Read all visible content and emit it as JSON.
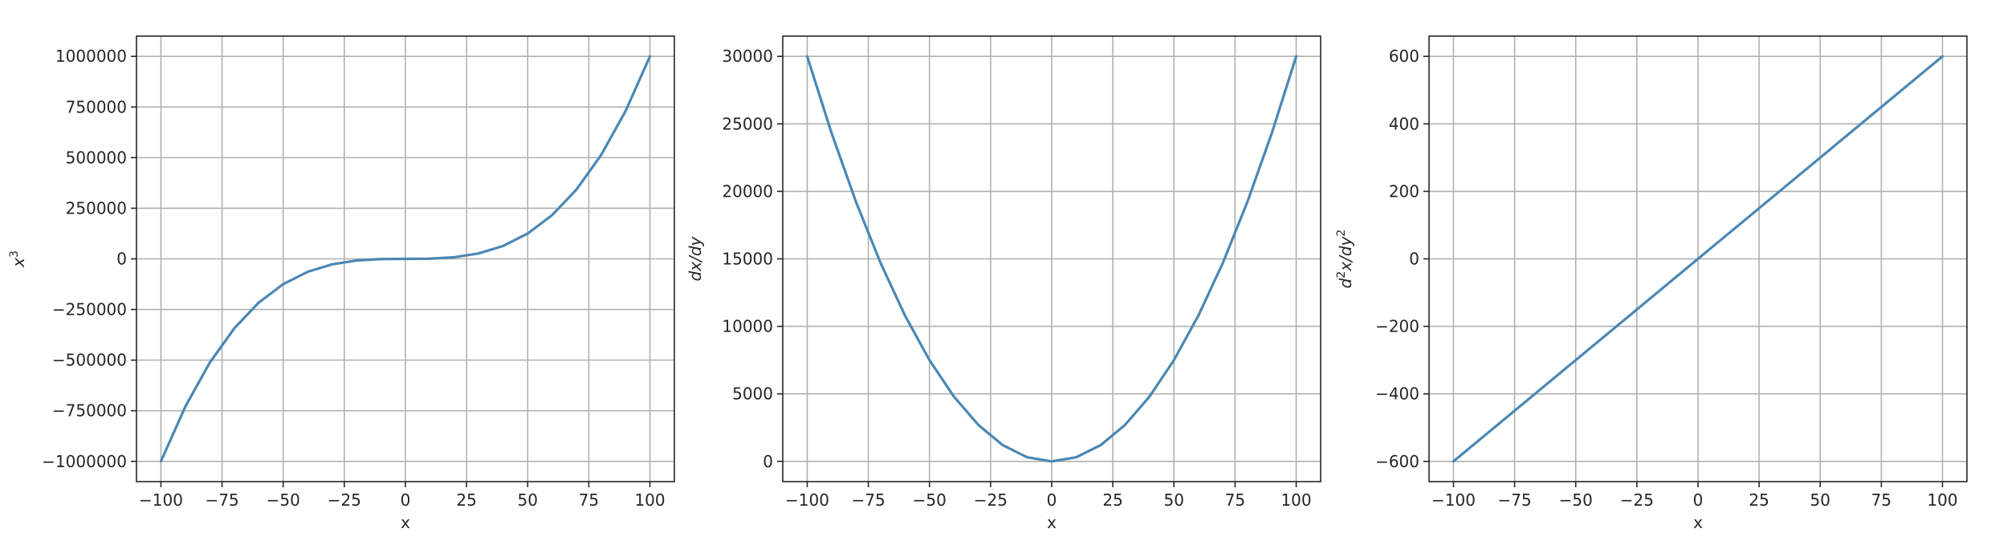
{
  "colors": {
    "series": "#4b87b5",
    "grid": "#b0b0b0",
    "frame": "#262626"
  },
  "chart_data": [
    {
      "type": "line",
      "title": "",
      "xlabel": "x",
      "ylabel_base": "x",
      "ylabel_sup": "3",
      "xlim": [
        -110,
        110
      ],
      "ylim": [
        -1100000,
        1100000
      ],
      "xticks": [
        -100,
        -75,
        -50,
        -25,
        0,
        25,
        50,
        75,
        100
      ],
      "xtick_labels": [
        "−100",
        "−75",
        "−50",
        "−25",
        "0",
        "25",
        "50",
        "75",
        "100"
      ],
      "yticks": [
        -1000000,
        -750000,
        -500000,
        -250000,
        0,
        250000,
        500000,
        750000,
        1000000
      ],
      "ytick_labels": [
        "−1000000",
        "−750000",
        "−500000",
        "−250000",
        "0",
        "250000",
        "500000",
        "750000",
        "1000000"
      ],
      "grid": true,
      "series": [
        {
          "x": [
            -100,
            -90,
            -80,
            -70,
            -60,
            -50,
            -40,
            -30,
            -20,
            -10,
            0,
            10,
            20,
            30,
            40,
            50,
            60,
            70,
            80,
            90,
            100
          ],
          "y": [
            -1000000,
            -729000,
            -512000,
            -343000,
            -216000,
            -125000,
            -64000,
            -27000,
            -8000,
            -1000,
            0,
            1000,
            8000,
            27000,
            64000,
            125000,
            216000,
            343000,
            512000,
            729000,
            1000000
          ]
        }
      ]
    },
    {
      "type": "line",
      "title": "",
      "xlabel": "x",
      "ylabel": "dx/dy",
      "xlim": [
        -110,
        110
      ],
      "ylim": [
        -1500,
        31500
      ],
      "xticks": [
        -100,
        -75,
        -50,
        -25,
        0,
        25,
        50,
        75,
        100
      ],
      "xtick_labels": [
        "−100",
        "−75",
        "−50",
        "−25",
        "0",
        "25",
        "50",
        "75",
        "100"
      ],
      "yticks": [
        0,
        5000,
        10000,
        15000,
        20000,
        25000,
        30000
      ],
      "ytick_labels": [
        "0",
        "5000",
        "10000",
        "15000",
        "20000",
        "25000",
        "30000"
      ],
      "grid": true,
      "series": [
        {
          "x": [
            -100,
            -90,
            -80,
            -70,
            -60,
            -50,
            -40,
            -30,
            -20,
            -10,
            0,
            10,
            20,
            30,
            40,
            50,
            60,
            70,
            80,
            90,
            100
          ],
          "y": [
            30000,
            24300,
            19200,
            14700,
            10800,
            7500,
            4800,
            2700,
            1200,
            300,
            0,
            300,
            1200,
            2700,
            4800,
            7500,
            10800,
            14700,
            19200,
            24300,
            30000
          ]
        }
      ]
    },
    {
      "type": "line",
      "title": "",
      "xlabel": "x",
      "ylabel_pre": "d",
      "ylabel_sup1": "2",
      "ylabel_mid": "x/dy",
      "ylabel_sup2": "2",
      "xlim": [
        -110,
        110
      ],
      "ylim": [
        -660,
        660
      ],
      "xticks": [
        -100,
        -75,
        -50,
        -25,
        0,
        25,
        50,
        75,
        100
      ],
      "xtick_labels": [
        "−100",
        "−75",
        "−50",
        "−25",
        "0",
        "25",
        "50",
        "75",
        "100"
      ],
      "yticks": [
        -600,
        -400,
        -200,
        0,
        200,
        400,
        600
      ],
      "ytick_labels": [
        "−600",
        "−400",
        "−200",
        "0",
        "200",
        "400",
        "600"
      ],
      "grid": true,
      "series": [
        {
          "x": [
            -100,
            100
          ],
          "y": [
            -600,
            600
          ]
        }
      ]
    }
  ]
}
